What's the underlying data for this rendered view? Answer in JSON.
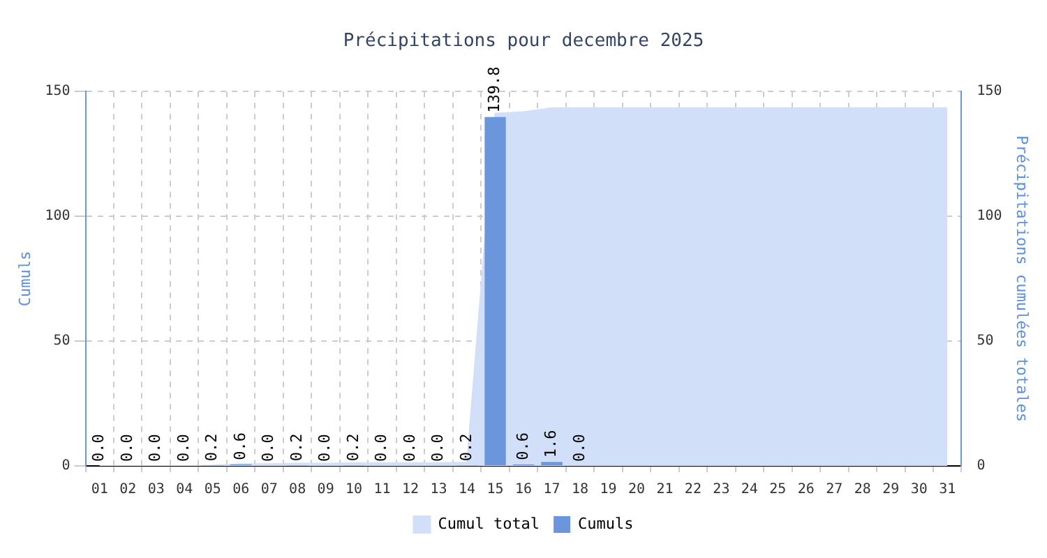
{
  "chart_data": {
    "type": "bar",
    "title": "Précipitations pour decembre 2025",
    "ylabel": "Cumuls",
    "y2label": "Précipitations cumulées totales",
    "categories": [
      "01",
      "02",
      "03",
      "04",
      "05",
      "06",
      "07",
      "08",
      "09",
      "10",
      "11",
      "12",
      "13",
      "14",
      "15",
      "16",
      "17",
      "18",
      "19",
      "20",
      "21",
      "22",
      "23",
      "24",
      "25",
      "26",
      "27",
      "28",
      "29",
      "30",
      "31"
    ],
    "series": [
      {
        "name": "Cumul total",
        "type": "area",
        "axis": "y2",
        "color": "#d2dff8",
        "values": [
          0,
          0,
          0,
          0,
          0.2,
          0.8,
          0.8,
          1.0,
          1.0,
          1.2,
          1.2,
          1.2,
          1.2,
          1.4,
          141.2,
          141.8,
          143.4,
          143.4,
          143.4,
          143.4,
          143.4,
          143.4,
          143.4,
          143.4,
          143.4,
          143.4,
          143.4,
          143.4,
          143.4,
          143.4,
          143.4
        ]
      },
      {
        "name": "Cumuls",
        "color": "#6b96dc",
        "values": [
          0,
          0,
          0,
          0,
          0.2,
          0.6,
          0,
          0.2,
          0,
          0.2,
          0,
          0,
          0,
          0.2,
          139.8,
          0.6,
          1.6,
          0,
          null,
          null,
          null,
          null,
          null,
          null,
          null,
          null,
          null,
          null,
          null,
          null,
          null
        ],
        "value_labels": [
          "0.0",
          "0.0",
          "0.0",
          "0.0",
          "0.2",
          "0.6",
          "0.0",
          "0.2",
          "0.0",
          "0.2",
          "0.0",
          "0.0",
          "0.0",
          "0.2",
          "139.8",
          "0.6",
          "1.6",
          "0.0",
          null,
          null,
          null,
          null,
          null,
          null,
          null,
          null,
          null,
          null,
          null,
          null,
          null
        ]
      }
    ],
    "ylim": [
      0,
      150
    ],
    "yticks": [
      0,
      50,
      100,
      150
    ],
    "y2lim": [
      0,
      150
    ],
    "y2ticks": [
      0,
      50,
      100,
      150
    ],
    "grid": true,
    "legend": "bottom"
  }
}
